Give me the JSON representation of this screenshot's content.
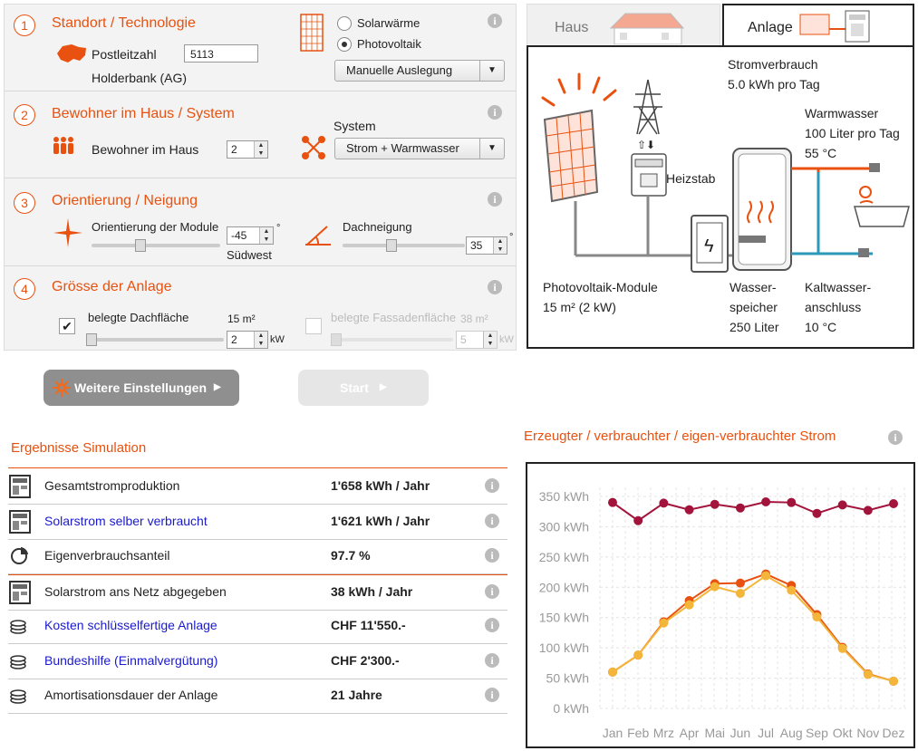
{
  "config": {
    "sections": [
      {
        "num": "1",
        "title": "Standort / Technologie"
      },
      {
        "num": "2",
        "title": "Bewohner im Haus / System"
      },
      {
        "num": "3",
        "title": "Orientierung / Neigung"
      },
      {
        "num": "4",
        "title": "Grösse der Anlage"
      }
    ],
    "location": {
      "plz_label": "Postleitzahl",
      "plz_value": "5113",
      "place": "Holderbank (AG)"
    },
    "technology": {
      "option1": "Solarwärme",
      "option2": "Photovoltaik",
      "selected": "Photovoltaik",
      "mode": "Manuelle Auslegung"
    },
    "residents": {
      "label": "Bewohner im Haus",
      "value": "2",
      "system_label": "System",
      "system_value": "Strom + Warmwasser"
    },
    "orientation": {
      "label": "Orientierung der Module",
      "value": "-45",
      "unit": "°",
      "direction": "Südwest",
      "tilt_label": "Dachneigung",
      "tilt_value": "35",
      "tilt_unit": "°"
    },
    "size": {
      "roof_label": "belegte Dachfläche",
      "roof_area": "15 m²",
      "roof_kw": "2",
      "kw_unit": "kW",
      "roof_checked": true,
      "facade_label": "belegte Fassadenfläche",
      "facade_area": "38 m²",
      "facade_kw": "5",
      "facade_checked": false
    }
  },
  "buttons": {
    "more": "Weitere Einstellungen",
    "start": "Start"
  },
  "system": {
    "tab_house": "Haus",
    "tab_plant": "Anlage",
    "consumption_label": "Stromverbrauch",
    "consumption_value": "5.0 kWh pro Tag",
    "hotwater_label": "Warmwasser",
    "hotwater_value": "100 Liter pro Tag",
    "hotwater_temp": "55 °C",
    "heater_label": "Heizstab",
    "pv_label": "Photovoltaik-Module",
    "pv_value": "15 m² (2 kW)",
    "tank_line1": "Wasser-",
    "tank_line2": "speicher",
    "tank_line3": "250 Liter",
    "cold_line1": "Kaltwasser-",
    "cold_line2": "anschluss",
    "cold_line3": "10 °C"
  },
  "results": {
    "title": "Ergebnisse Simulation",
    "rows": [
      {
        "name": "Gesamtstromproduktion",
        "value": "1'658 kWh / Jahr",
        "link": false,
        "icon": "meter-icon"
      },
      {
        "name": "Solarstrom selber verbraucht",
        "value": "1'621 kWh / Jahr",
        "link": true,
        "icon": "meter-icon"
      },
      {
        "name": "Eigenverbrauchsanteil",
        "value": "97.7 %",
        "link": false,
        "icon": "pie-icon"
      },
      {
        "name": "Solarstrom ans Netz abgegeben",
        "value": "38 kWh / Jahr",
        "link": false,
        "icon": "meter-icon"
      },
      {
        "name": "Kosten schlüsselfertige Anlage",
        "value": "CHF 11'550.-",
        "link": true,
        "icon": "coins-icon"
      },
      {
        "name": "Bundeshilfe (Einmalvergütung)",
        "value": "CHF 2'300.-",
        "link": true,
        "icon": "coins-icon"
      },
      {
        "name": "Amortisationsdauer der Anlage",
        "value": "21 Jahre",
        "link": false,
        "icon": "coins-icon"
      }
    ]
  },
  "chart_title": "Erzeugter / verbrauchter / eigen-verbrauchter Strom",
  "chart_data": {
    "type": "line",
    "categories": [
      "Jan",
      "Feb",
      "Mrz",
      "Apr",
      "Mai",
      "Jun",
      "Jul",
      "Aug",
      "Sep",
      "Okt",
      "Nov",
      "Dez"
    ],
    "y_ticks": [
      "0 kWh",
      "50 kWh",
      "100 kWh",
      "150 kWh",
      "200 kWh",
      "250 kWh",
      "300 kWh",
      "350 kWh"
    ],
    "ylim": [
      0,
      350
    ],
    "grid": true,
    "series": [
      {
        "values": [
          340,
          310,
          339,
          328,
          337,
          331,
          341,
          340,
          322,
          336,
          327,
          338
        ],
        "color": "#a3143c"
      },
      {
        "values": [
          60,
          88,
          143,
          178,
          206,
          207,
          222,
          203,
          155,
          101,
          57,
          45
        ],
        "color": "#e8510f"
      },
      {
        "values": [
          60,
          88,
          141,
          171,
          201,
          190,
          219,
          195,
          151,
          99,
          56,
          45
        ],
        "color": "#f4b63a"
      }
    ]
  }
}
